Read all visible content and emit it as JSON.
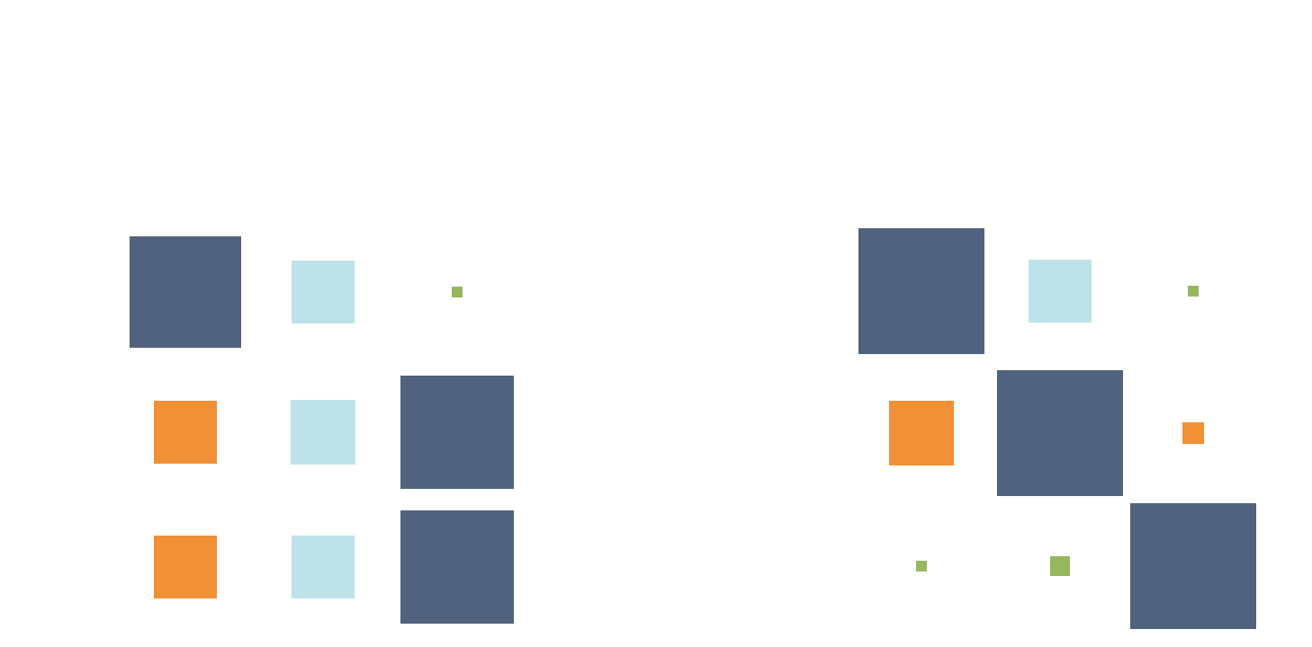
{
  "chart_data": [
    {
      "type": "heatmap",
      "encoding": "square-size-and-color",
      "rows": 3,
      "cols": 3,
      "cells": [
        {
          "row": 0,
          "col": 0,
          "value": 0.62,
          "color": "dark-slate"
        },
        {
          "row": 0,
          "col": 1,
          "value": 0.35,
          "color": "light-blue"
        },
        {
          "row": 0,
          "col": 2,
          "value": 0.06,
          "color": "green"
        },
        {
          "row": 1,
          "col": 0,
          "value": 0.35,
          "color": "orange"
        },
        {
          "row": 1,
          "col": 1,
          "value": 0.36,
          "color": "light-blue"
        },
        {
          "row": 1,
          "col": 2,
          "value": 0.63,
          "color": "dark-slate"
        },
        {
          "row": 2,
          "col": 0,
          "value": 0.35,
          "color": "orange"
        },
        {
          "row": 2,
          "col": 1,
          "value": 0.35,
          "color": "light-blue"
        },
        {
          "row": 2,
          "col": 2,
          "value": 0.63,
          "color": "dark-slate"
        }
      ]
    },
    {
      "type": "heatmap",
      "encoding": "square-size-and-color",
      "rows": 3,
      "cols": 3,
      "cells": [
        {
          "row": 0,
          "col": 0,
          "value": 0.7,
          "color": "dark-slate"
        },
        {
          "row": 0,
          "col": 1,
          "value": 0.35,
          "color": "light-blue"
        },
        {
          "row": 0,
          "col": 2,
          "value": 0.06,
          "color": "green"
        },
        {
          "row": 1,
          "col": 0,
          "value": 0.36,
          "color": "orange"
        },
        {
          "row": 1,
          "col": 1,
          "value": 0.7,
          "color": "dark-slate"
        },
        {
          "row": 1,
          "col": 2,
          "value": 0.12,
          "color": "orange"
        },
        {
          "row": 2,
          "col": 0,
          "value": 0.06,
          "color": "green"
        },
        {
          "row": 2,
          "col": 1,
          "value": 0.11,
          "color": "green"
        },
        {
          "row": 2,
          "col": 2,
          "value": 0.7,
          "color": "dark-slate"
        }
      ]
    }
  ],
  "palette": {
    "dark-slate": "#51627f",
    "light-blue": "#bde2ea",
    "green": "#95b75d",
    "orange": "#f09137"
  }
}
